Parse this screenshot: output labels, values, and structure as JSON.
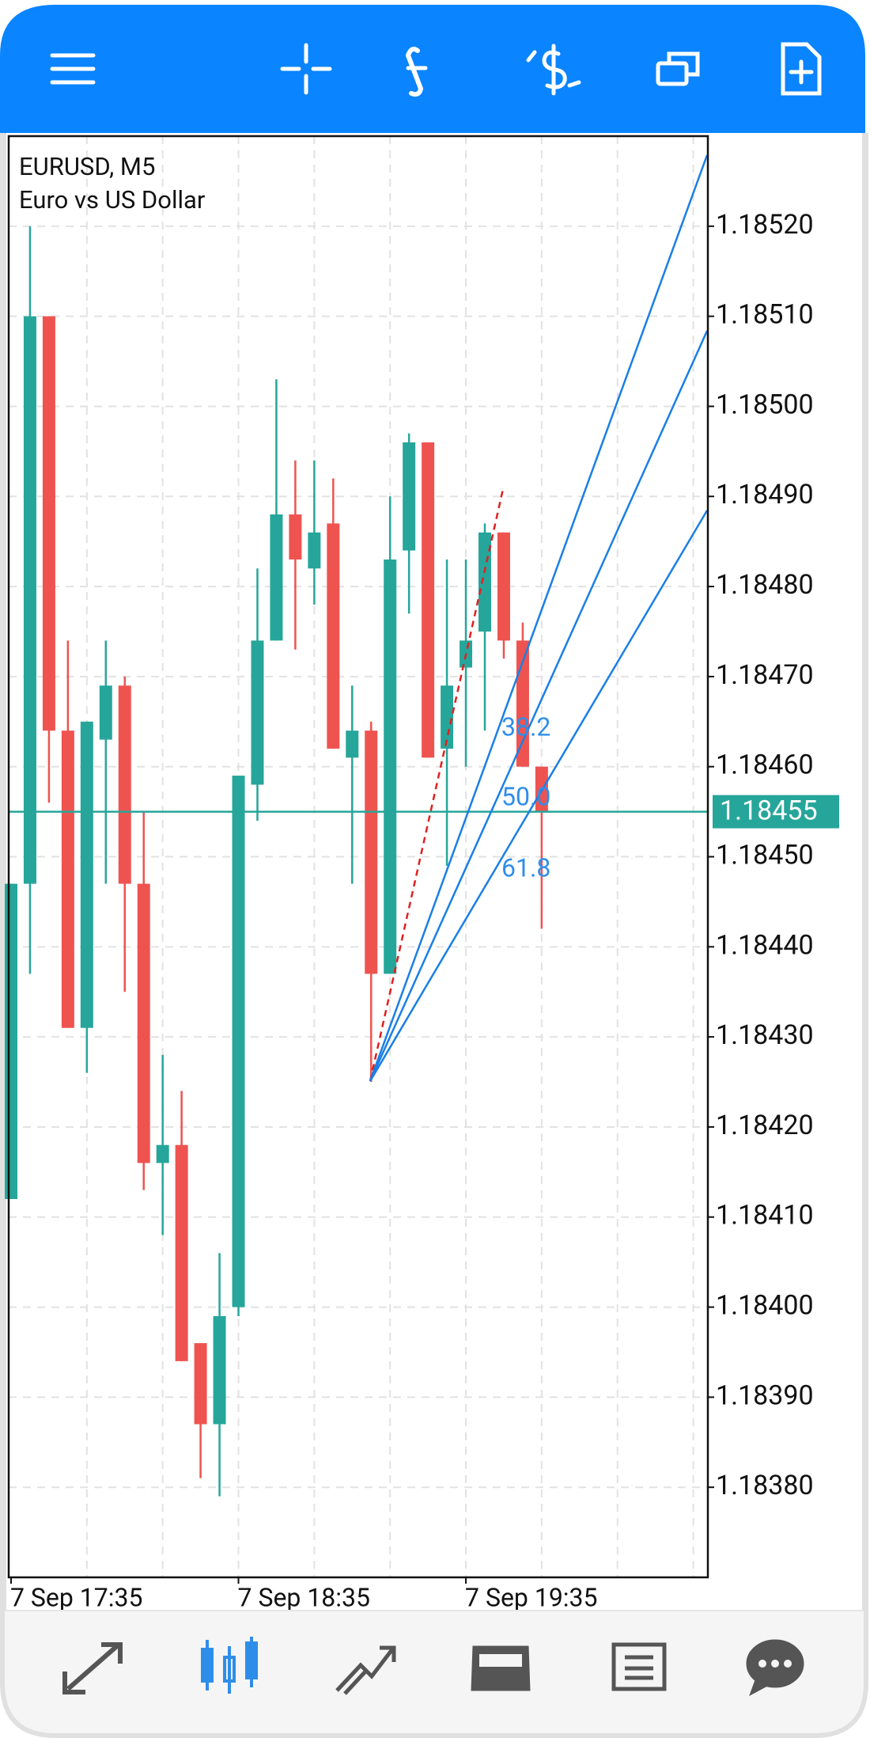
{
  "chart_data": {
    "type": "candlestick",
    "title": "EURUSD, M5",
    "subtitle": "Euro vs US Dollar",
    "categories": [
      "7 Sep 17:35",
      null,
      null,
      null,
      null,
      null,
      null,
      null,
      null,
      null,
      null,
      null,
      "7 Sep 18:35",
      null,
      null,
      null,
      null,
      null,
      null,
      null,
      null,
      null,
      null,
      null,
      "7 Sep 19:35",
      null,
      null,
      null,
      null
    ],
    "open": [
      1.18412,
      1.18447,
      1.1851,
      1.18464,
      1.18431,
      1.18463,
      1.18469,
      1.18447,
      1.18416,
      1.18418,
      1.18396,
      1.18387,
      1.184,
      1.18458,
      1.18474,
      1.18488,
      1.18482,
      1.18487,
      1.18461,
      1.18464,
      1.18437,
      1.18484,
      1.18496,
      1.18462,
      1.18471,
      1.18475,
      1.18486,
      1.18474,
      1.1846
    ],
    "high": [
      1.18447,
      1.1852,
      1.1851,
      1.18474,
      1.18465,
      1.18474,
      1.1847,
      1.18455,
      1.18428,
      1.18424,
      1.18396,
      1.18406,
      1.18459,
      1.18482,
      1.18503,
      1.18494,
      1.18494,
      1.18492,
      1.18469,
      1.18465,
      1.1849,
      1.18497,
      1.18496,
      1.18483,
      1.18483,
      1.18487,
      1.18486,
      1.18476,
      1.1846
    ],
    "low": [
      1.18412,
      1.18437,
      1.18456,
      1.18431,
      1.18426,
      1.18447,
      1.18435,
      1.18413,
      1.18408,
      1.18394,
      1.18381,
      1.18379,
      1.18399,
      1.18454,
      1.18474,
      1.18473,
      1.18478,
      1.18462,
      1.18447,
      1.18425,
      1.18437,
      1.18477,
      1.18461,
      1.18449,
      1.1846,
      1.18464,
      1.18472,
      1.1846,
      1.18442
    ],
    "close": [
      1.18447,
      1.1851,
      1.18464,
      1.18431,
      1.18465,
      1.18469,
      1.18447,
      1.18416,
      1.18418,
      1.18394,
      1.18387,
      1.18399,
      1.18459,
      1.18474,
      1.18488,
      1.18483,
      1.18486,
      1.18462,
      1.18464,
      1.18437,
      1.18483,
      1.18496,
      1.18461,
      1.18469,
      1.18474,
      1.18486,
      1.18474,
      1.1846,
      1.18455
    ],
    "up_color": "#26a69a",
    "down_color": "#ef5350",
    "ylim": [
      1.1837,
      1.1853
    ],
    "yticks": [
      {
        "value": 1.1852,
        "label": "1.18520"
      },
      {
        "value": 1.1851,
        "label": "1.18510"
      },
      {
        "value": 1.185,
        "label": "1.18500"
      },
      {
        "value": 1.1849,
        "label": "1.18490"
      },
      {
        "value": 1.1848,
        "label": "1.18480"
      },
      {
        "value": 1.1847,
        "label": "1.18470"
      },
      {
        "value": 1.1846,
        "label": "1.18460"
      },
      {
        "value": 1.1845,
        "label": "1.18450"
      },
      {
        "value": 1.1844,
        "label": "1.18440"
      },
      {
        "value": 1.1843,
        "label": "1.18430"
      },
      {
        "value": 1.1842,
        "label": "1.18420"
      },
      {
        "value": 1.1841,
        "label": "1.18410"
      },
      {
        "value": 1.184,
        "label": "1.18400"
      },
      {
        "value": 1.1839,
        "label": "1.18390"
      },
      {
        "value": 1.1838,
        "label": "1.18380"
      }
    ],
    "grid": true,
    "current_price": {
      "value": 1.18455,
      "label": "1.18455"
    },
    "fib_fan_labels": [
      "38.2",
      "50.0",
      "61.8"
    ]
  }
}
